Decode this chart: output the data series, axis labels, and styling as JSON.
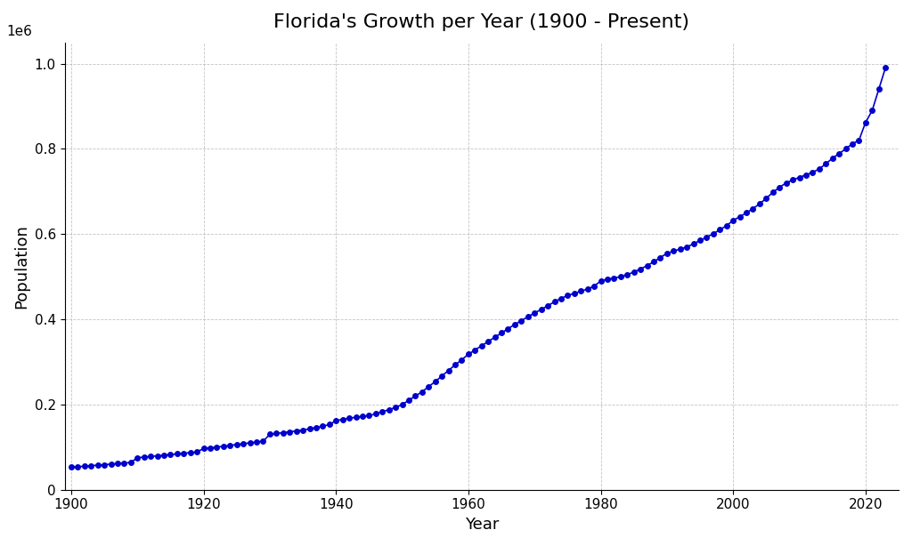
{
  "title": "Florida's Growth per Year (1900 - Present)",
  "xlabel": "Year",
  "ylabel": "Population",
  "line_color": "#0000cc",
  "marker_color": "#0000cc",
  "marker": "o",
  "marker_size": 4,
  "linewidth": 1.2,
  "background_color": "#ffffff",
  "grid_color": "#aaaaaa",
  "xlim": [
    1899,
    2025
  ],
  "ylim": [
    0,
    1050000
  ],
  "years": [
    1900,
    1901,
    1902,
    1903,
    1904,
    1905,
    1906,
    1907,
    1908,
    1909,
    1910,
    1911,
    1912,
    1913,
    1914,
    1915,
    1916,
    1917,
    1918,
    1919,
    1920,
    1921,
    1922,
    1923,
    1924,
    1925,
    1926,
    1927,
    1928,
    1929,
    1930,
    1931,
    1932,
    1933,
    1934,
    1935,
    1936,
    1937,
    1938,
    1939,
    1940,
    1941,
    1942,
    1943,
    1944,
    1945,
    1946,
    1947,
    1948,
    1949,
    1950,
    1951,
    1952,
    1953,
    1954,
    1955,
    1956,
    1957,
    1958,
    1959,
    1960,
    1961,
    1962,
    1963,
    1964,
    1965,
    1966,
    1967,
    1968,
    1969,
    1970,
    1971,
    1972,
    1973,
    1974,
    1975,
    1976,
    1977,
    1978,
    1979,
    1980,
    1981,
    1982,
    1983,
    1984,
    1985,
    1986,
    1987,
    1988,
    1989,
    1990,
    1991,
    1992,
    1993,
    1994,
    1995,
    1996,
    1997,
    1998,
    1999,
    2000,
    2001,
    2002,
    2003,
    2004,
    2005,
    2006,
    2007,
    2008,
    2009,
    2010,
    2011,
    2012,
    2013,
    2014,
    2015,
    2016,
    2017,
    2018,
    2019,
    2020,
    2021,
    2022,
    2023
  ],
  "population": [
    52854,
    54000,
    55200,
    56400,
    57600,
    58800,
    60000,
    61300,
    62600,
    63900,
    75262,
    76500,
    78000,
    79500,
    81000,
    82500,
    84000,
    85500,
    87000,
    88500,
    96847,
    98500,
    100000,
    102000,
    104000,
    106000,
    108000,
    110000,
    112000,
    114000,
    130000,
    132000,
    134000,
    136000,
    138000,
    140000,
    143000,
    146000,
    149000,
    153000,
    162000,
    165000,
    168000,
    170000,
    172000,
    174000,
    178000,
    183000,
    188000,
    193000,
    200000,
    210000,
    220000,
    230000,
    242000,
    254000,
    267000,
    280000,
    293000,
    305000,
    318000,
    328000,
    338000,
    348000,
    358000,
    368000,
    378000,
    388000,
    397000,
    406000,
    415000,
    423000,
    432000,
    441000,
    449000,
    456000,
    461000,
    466000,
    471000,
    478000,
    490000,
    494000,
    497000,
    500000,
    505000,
    511000,
    518000,
    526000,
    535000,
    545000,
    555000,
    560000,
    565000,
    570000,
    577000,
    585000,
    593000,
    601000,
    610000,
    620000,
    632000,
    641000,
    650000,
    660000,
    671000,
    684000,
    698000,
    710000,
    720000,
    727000,
    733000,
    739000,
    745000,
    753000,
    765000,
    778000,
    789000,
    800000,
    812000,
    820000,
    862000,
    890000,
    940000,
    990000
  ],
  "title_fontsize": 16,
  "label_fontsize": 13,
  "tick_fontsize": 11
}
